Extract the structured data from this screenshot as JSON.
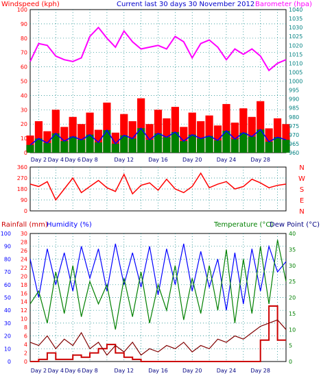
{
  "title": "Current last 30 days 30 November 2012",
  "colors": {
    "windspeed": "#ff0000",
    "gust_bar": "#ff0000",
    "avg_bar": "#008000",
    "avg_line": "#0000ff",
    "barometer": "#ff00ff",
    "direction": "#ff0000",
    "rain": "#cc0000",
    "humidity": "#0000ff",
    "temperature": "#008000",
    "dewpoint": "#800000",
    "axis_left_top": "#ff0000",
    "axis_right_top": "#008080",
    "axis_left_bottom": "#0000ff",
    "axis_rain": "#ff0000",
    "axis_temp": "#008000",
    "day_labels": "#000080"
  },
  "chart_data": [
    {
      "type": "line",
      "title": "Current last 30 days 30 November 2012",
      "series": [
        {
          "name": "Windspeed (kph)",
          "axis": "left",
          "values": [
            12,
            22,
            15,
            30,
            18,
            25,
            20,
            28,
            16,
            35,
            14,
            27,
            22,
            38,
            20,
            30,
            24,
            32,
            18,
            28,
            22,
            26,
            19,
            34,
            21,
            31,
            25,
            36,
            17,
            24,
            20
          ]
        },
        {
          "name": "Barometer (hpa)",
          "axis": "right",
          "values": [
            1011,
            1021,
            1020,
            1014,
            1012,
            1011,
            1013,
            1025,
            1030,
            1024,
            1019,
            1028,
            1022,
            1018,
            1019,
            1020,
            1018,
            1025,
            1022,
            1013,
            1021,
            1023,
            1019,
            1012,
            1018,
            1015,
            1018,
            1014,
            1006,
            1010,
            1012
          ]
        }
      ],
      "left_axis": {
        "label": "Windspeed (kph)",
        "ylim": [
          0,
          100
        ],
        "ticks": [
          "0",
          "10",
          "20",
          "30",
          "40",
          "50",
          "60",
          "70",
          "80",
          "90",
          "100"
        ]
      },
      "right_axis": {
        "label": "Barometer (hpa)",
        "ylim": [
          960,
          1040
        ],
        "ticks": [
          "960",
          "965",
          "970",
          "975",
          "980",
          "985",
          "990",
          "995",
          "1000",
          "1005",
          "1010",
          "1015",
          "1020",
          "1025",
          "1030",
          "1035",
          "1040"
        ]
      },
      "x_ticks": [
        "Day 2",
        "Day 4",
        "Day 6",
        "Day 8",
        "Day 12",
        "Day 16",
        "Day 20",
        "Day 24",
        "Day 28"
      ],
      "grid": true
    },
    {
      "type": "line",
      "series": [
        {
          "name": "Wind direction",
          "values": [
            220,
            200,
            240,
            90,
            180,
            270,
            150,
            200,
            250,
            190,
            160,
            300,
            140,
            210,
            230,
            170,
            260,
            180,
            150,
            200,
            310,
            190,
            220,
            240,
            180,
            200,
            260,
            230,
            190,
            210,
            220
          ]
        }
      ],
      "left_axis": {
        "ylim": [
          0,
          360
        ],
        "ticks": [
          "0",
          "90",
          "180",
          "270",
          "360"
        ]
      },
      "right_labels": [
        "N",
        "W",
        "S",
        "E",
        "N"
      ],
      "grid": true
    },
    {
      "type": "line",
      "series": [
        {
          "name": "Rainfall (mm)",
          "axis": "rain",
          "values": [
            0,
            0.5,
            2,
            0.5,
            0.5,
            1.5,
            1,
            2,
            3,
            4,
            2,
            1,
            0.5,
            0,
            0,
            0,
            0,
            0,
            0,
            0,
            0,
            0,
            0,
            0,
            0,
            0,
            0,
            5,
            13,
            5,
            5
          ]
        },
        {
          "name": "Humidity (%)",
          "axis": "left",
          "values": [
            80,
            50,
            88,
            60,
            85,
            55,
            90,
            65,
            88,
            55,
            92,
            60,
            85,
            58,
            90,
            52,
            88,
            60,
            92,
            55,
            86,
            58,
            80,
            40,
            85,
            45,
            88,
            55,
            90,
            70,
            78
          ]
        },
        {
          "name": "Temperature (°C)",
          "axis": "right",
          "values": [
            18,
            22,
            12,
            28,
            15,
            30,
            14,
            25,
            18,
            24,
            10,
            26,
            14,
            28,
            12,
            24,
            16,
            30,
            13,
            26,
            15,
            30,
            16,
            35,
            12,
            32,
            15,
            36,
            18,
            38,
            25
          ]
        },
        {
          "name": "Dew Point (°C)",
          "axis": "right",
          "values": [
            6,
            5,
            8,
            4,
            7,
            5,
            9,
            4,
            6,
            2,
            5,
            3,
            6,
            2,
            4,
            3,
            5,
            4,
            6,
            3,
            5,
            4,
            7,
            6,
            8,
            7,
            9,
            11,
            12,
            13,
            10
          ]
        }
      ],
      "left_axis": {
        "label": "Humidity (%)",
        "ylim": [
          0,
          100
        ],
        "ticks": [
          "0",
          "10",
          "20",
          "30",
          "40",
          "50",
          "60",
          "70",
          "80",
          "90",
          "100"
        ]
      },
      "rain_axis": {
        "label": "Rainfall (mm)",
        "ylim": [
          0,
          30
        ],
        "ticks": [
          "0",
          "2",
          "4",
          "6",
          "8",
          "10",
          "12",
          "14",
          "16",
          "18",
          "20",
          "22",
          "24",
          "26",
          "28",
          "30"
        ]
      },
      "right_axis": {
        "label": "Temperature (°C)",
        "ylim": [
          0,
          40
        ],
        "ticks": [
          "0",
          "5",
          "10",
          "15",
          "20",
          "25",
          "30",
          "35",
          "40"
        ]
      },
      "right_label_2": "Dew Point (°C)",
      "x_ticks": [
        "Day 2",
        "Day 4",
        "Day 6",
        "Day 8",
        "Day 12",
        "Day 16",
        "Day 20",
        "Day 24",
        "Day 28"
      ],
      "grid": true
    }
  ]
}
